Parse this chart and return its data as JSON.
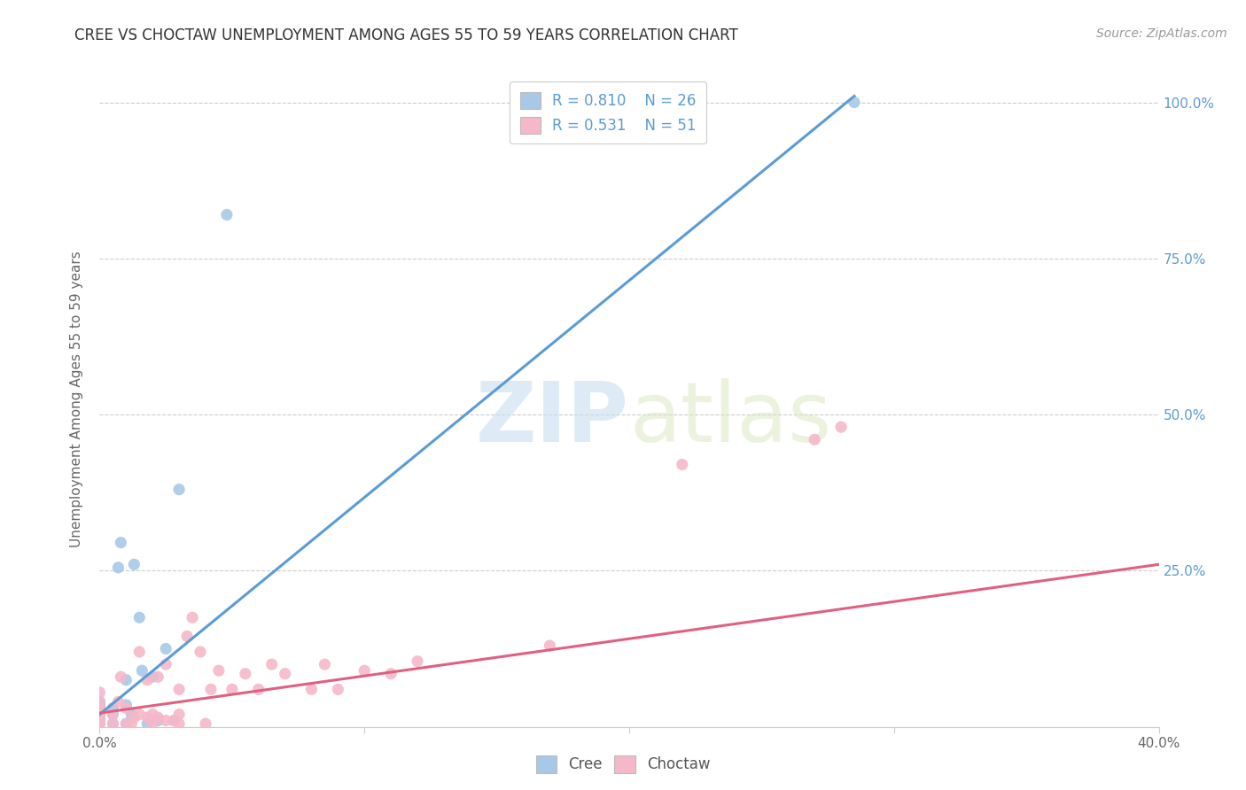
{
  "title": "CREE VS CHOCTAW UNEMPLOYMENT AMONG AGES 55 TO 59 YEARS CORRELATION CHART",
  "source": "Source: ZipAtlas.com",
  "ylabel": "Unemployment Among Ages 55 to 59 years",
  "xlim": [
    0.0,
    0.4
  ],
  "ylim": [
    0.0,
    1.05
  ],
  "cree_color": "#a8c8e8",
  "choctaw_color": "#f5b8c8",
  "cree_line_color": "#5b9bd5",
  "choctaw_line_color": "#e06080",
  "tick_label_color": "#5b9bd5",
  "cree_R": 0.81,
  "cree_N": 26,
  "choctaw_R": 0.531,
  "choctaw_N": 51,
  "cree_line_x0": 0.0,
  "cree_line_y0": 0.02,
  "cree_line_x1": 0.285,
  "cree_line_y1": 1.01,
  "choctaw_line_x0": 0.0,
  "choctaw_line_y0": 0.022,
  "choctaw_line_x1": 0.4,
  "choctaw_line_y1": 0.26,
  "cree_scatter_x": [
    0.0,
    0.0,
    0.0,
    0.0,
    0.0,
    0.0,
    0.005,
    0.005,
    0.005,
    0.007,
    0.008,
    0.01,
    0.01,
    0.01,
    0.012,
    0.013,
    0.015,
    0.016,
    0.018,
    0.02,
    0.022,
    0.025,
    0.028,
    0.03,
    0.048,
    0.285
  ],
  "cree_scatter_y": [
    0.005,
    0.01,
    0.02,
    0.03,
    0.035,
    0.04,
    0.005,
    0.02,
    0.03,
    0.255,
    0.295,
    0.005,
    0.035,
    0.075,
    0.02,
    0.26,
    0.175,
    0.09,
    0.005,
    0.08,
    0.01,
    0.125,
    0.01,
    0.38,
    0.82,
    1.0
  ],
  "choctaw_scatter_x": [
    0.0,
    0.0,
    0.0,
    0.0,
    0.0,
    0.0,
    0.0,
    0.0,
    0.005,
    0.005,
    0.007,
    0.008,
    0.01,
    0.01,
    0.012,
    0.013,
    0.015,
    0.015,
    0.018,
    0.018,
    0.02,
    0.02,
    0.022,
    0.022,
    0.025,
    0.025,
    0.028,
    0.03,
    0.03,
    0.03,
    0.033,
    0.035,
    0.038,
    0.04,
    0.042,
    0.045,
    0.05,
    0.055,
    0.06,
    0.065,
    0.07,
    0.08,
    0.085,
    0.09,
    0.1,
    0.11,
    0.12,
    0.17,
    0.22,
    0.27,
    0.28
  ],
  "choctaw_scatter_y": [
    0.005,
    0.01,
    0.015,
    0.02,
    0.025,
    0.03,
    0.04,
    0.055,
    0.005,
    0.02,
    0.04,
    0.08,
    0.005,
    0.03,
    0.005,
    0.015,
    0.02,
    0.12,
    0.015,
    0.075,
    0.005,
    0.02,
    0.015,
    0.08,
    0.01,
    0.1,
    0.01,
    0.005,
    0.02,
    0.06,
    0.145,
    0.175,
    0.12,
    0.005,
    0.06,
    0.09,
    0.06,
    0.085,
    0.06,
    0.1,
    0.085,
    0.06,
    0.1,
    0.06,
    0.09,
    0.085,
    0.105,
    0.13,
    0.42,
    0.46,
    0.48
  ],
  "watermark_zip": "ZIP",
  "watermark_atlas": "atlas",
  "background_color": "#ffffff",
  "grid_color": "#cccccc",
  "title_color": "#333333",
  "source_color": "#999999"
}
